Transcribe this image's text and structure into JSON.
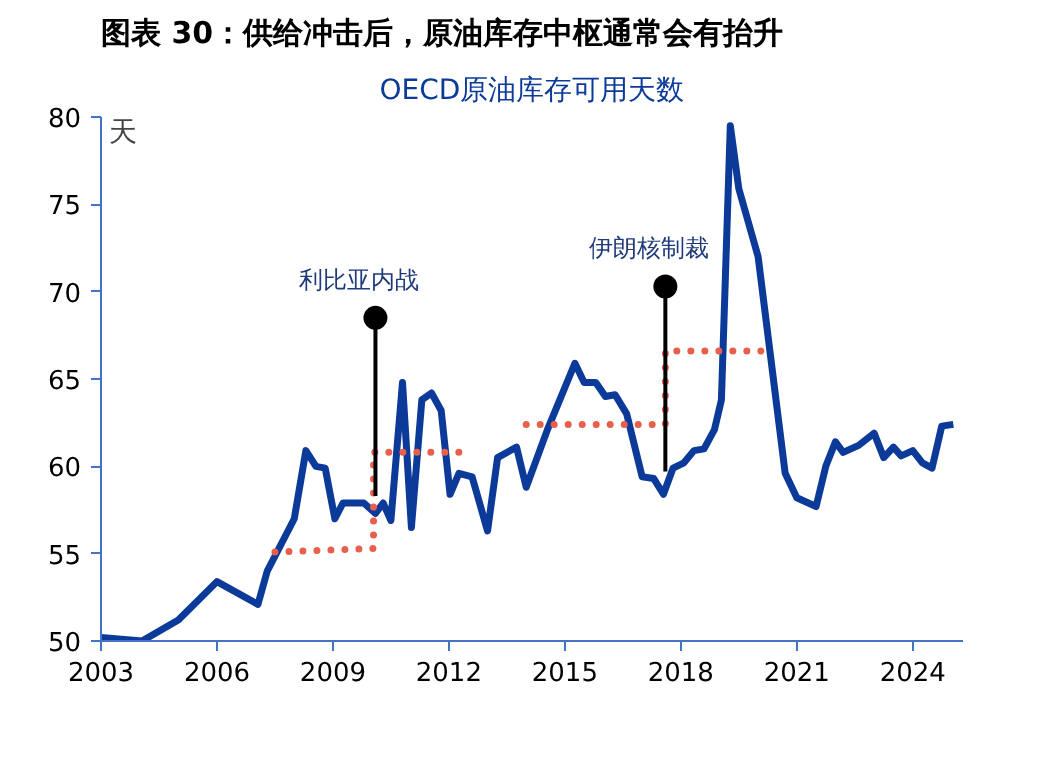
{
  "chart_data": {
    "type": "line",
    "title": "图表 30：供给冲击后，原油库存中枢通常会有抬升",
    "subtitle": "OECD原油库存可用天数",
    "ylabel": "天",
    "xlim": [
      2003,
      2025.3
    ],
    "xticks": [
      2003,
      2006,
      2009,
      2012,
      2015,
      2018,
      2021,
      2024
    ],
    "ylim": [
      50,
      80
    ],
    "yticks": [
      50,
      55,
      60,
      65,
      70,
      75,
      80
    ],
    "grid": false,
    "annotations": [
      {
        "text": "利比亚内战",
        "x": 2010.1,
        "y": 68.5
      },
      {
        "text": "伊朗核制裁",
        "x": 2017.6,
        "y": 70.3
      }
    ],
    "series": [
      {
        "color": "#0b3a99",
        "line_style": "solid",
        "x": [
          2003,
          2004.06,
          2005.0,
          2006.0,
          2007.06,
          2007.3,
          2008.0,
          2008.3,
          2008.56,
          2008.8,
          2009.05,
          2009.26,
          2009.8,
          2010.1,
          2010.3,
          2010.5,
          2010.8,
          2011.03,
          2011.3,
          2011.55,
          2011.8,
          2012.03,
          2012.26,
          2012.6,
          2013.0,
          2013.26,
          2013.75,
          2014.0,
          2014.55,
          2015.26,
          2015.5,
          2015.8,
          2016.05,
          2016.3,
          2016.6,
          2017.0,
          2017.3,
          2017.55,
          2017.8,
          2018.08,
          2018.34,
          2018.6,
          2018.87,
          2019.05,
          2019.28,
          2019.5,
          2020.0,
          2020.7,
          2021.0,
          2021.5,
          2021.75,
          2022.0,
          2022.2,
          2022.6,
          2023.0,
          2023.25,
          2023.5,
          2023.7,
          2024.0,
          2024.25,
          2024.5,
          2024.75,
          2025.05
        ],
        "values": [
          50.2,
          50.0,
          51.2,
          53.4,
          52.1,
          54.0,
          57.0,
          60.9,
          60.0,
          59.9,
          57.0,
          57.9,
          57.9,
          57.3,
          57.9,
          56.9,
          64.8,
          56.5,
          63.8,
          64.2,
          63.2,
          58.4,
          59.6,
          59.4,
          56.3,
          60.5,
          61.1,
          58.8,
          62.1,
          65.9,
          64.8,
          64.8,
          64.0,
          64.1,
          63.0,
          59.4,
          59.3,
          58.4,
          59.9,
          60.2,
          60.9,
          61.0,
          62.1,
          63.8,
          79.5,
          75.9,
          72.0,
          59.6,
          58.2,
          57.7,
          60.0,
          61.4,
          60.8,
          61.2,
          61.9,
          60.5,
          61.1,
          60.6,
          60.9,
          60.2,
          59.9,
          62.3,
          62.4
        ]
      },
      {
        "color": "#e8604c",
        "line_style": "dotted",
        "x": [
          2007.5,
          2010.05,
          2010.05,
          2012.35
        ],
        "values": [
          55.1,
          55.3,
          60.8,
          60.8
        ]
      },
      {
        "color": "#e8604c",
        "line_style": "dotted",
        "x": [
          2014.0,
          2017.6,
          2017.6,
          2020.3
        ],
        "values": [
          62.4,
          62.4,
          66.6,
          66.6
        ]
      }
    ]
  }
}
